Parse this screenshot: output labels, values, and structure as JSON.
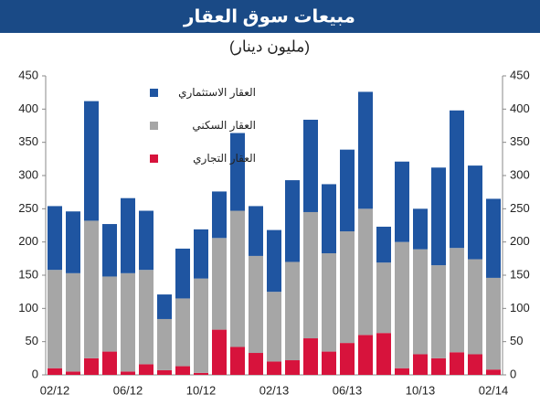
{
  "chart_data": {
    "type": "stacked_bar",
    "title": "مبيعات سوق العقار",
    "subtitle": "(مليون دينار)",
    "categories": [
      "02/12",
      null,
      null,
      null,
      "06/12",
      null,
      null,
      null,
      "10/12",
      null,
      null,
      null,
      "02/13",
      null,
      null,
      null,
      "06/13",
      null,
      null,
      null,
      "10/13",
      null,
      null,
      null,
      "02/14"
    ],
    "series": [
      {
        "name": "العقار التجاري",
        "color": "#d7133c",
        "values": [
          10,
          5,
          25,
          35,
          5,
          16,
          7,
          13,
          3,
          68,
          42,
          33,
          20,
          22,
          55,
          35,
          48,
          60,
          63,
          10,
          31,
          25,
          34,
          31,
          8
        ]
      },
      {
        "name": "العقار السكني",
        "color": "#a6a6a6",
        "values": [
          148,
          148,
          207,
          113,
          148,
          142,
          77,
          102,
          142,
          138,
          205,
          146,
          105,
          148,
          190,
          148,
          168,
          190,
          106,
          190,
          158,
          140,
          157,
          143,
          138
        ]
      },
      {
        "name": "العقار الاستثماري",
        "color": "#1f55a1",
        "values": [
          96,
          93,
          180,
          79,
          113,
          89,
          37,
          75,
          74,
          70,
          117,
          75,
          93,
          123,
          139,
          104,
          123,
          176,
          54,
          121,
          61,
          147,
          207,
          141,
          119
        ]
      }
    ],
    "ylim": [
      0,
      450
    ],
    "yticks": [
      0,
      50,
      100,
      150,
      200,
      250,
      300,
      350,
      400,
      450
    ],
    "y2lim": [
      0,
      450
    ],
    "y2ticks": [
      0,
      50,
      100,
      150,
      200,
      250,
      300,
      350,
      400,
      450
    ]
  }
}
